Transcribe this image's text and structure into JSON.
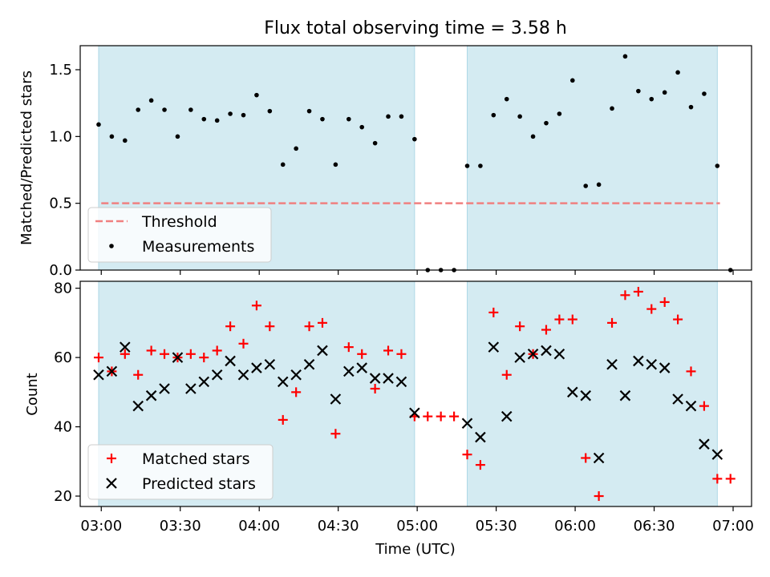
{
  "chart_data": [
    {
      "type": "scatter",
      "title": "Flux total observing time = 3.58 h",
      "xlabel": "",
      "ylabel": "Matched/Predicted stars",
      "ylim": [
        0,
        1.68
      ],
      "yticks": [
        0.0,
        0.5,
        1.0,
        1.5
      ],
      "ytick_labels": [
        "0.0",
        "0.5",
        "1.0",
        "1.5"
      ],
      "threshold": {
        "name": "Threshold",
        "value": 0.5,
        "color": "#f08080",
        "x_start": "03:00",
        "x_end": "06:55"
      },
      "shaded_intervals": [
        [
          "02:59",
          "04:59"
        ],
        [
          "05:19",
          "06:54"
        ]
      ],
      "shade_color": "#add8e6",
      "legend": {
        "location": "lower-left",
        "entries": [
          "Threshold",
          "Measurements"
        ]
      },
      "series": [
        {
          "name": "Measurements",
          "marker": "dot",
          "color": "#000000",
          "x": [
            "02:59",
            "03:04",
            "03:09",
            "03:14",
            "03:19",
            "03:24",
            "03:29",
            "03:34",
            "03:39",
            "03:44",
            "03:49",
            "03:54",
            "03:59",
            "04:04",
            "04:09",
            "04:14",
            "04:19",
            "04:24",
            "04:29",
            "04:34",
            "04:39",
            "04:44",
            "04:49",
            "04:54",
            "04:59",
            "05:04",
            "05:09",
            "05:14",
            "05:19",
            "05:24",
            "05:29",
            "05:34",
            "05:39",
            "05:44",
            "05:49",
            "05:54",
            "05:59",
            "06:04",
            "06:09",
            "06:14",
            "06:19",
            "06:24",
            "06:29",
            "06:34",
            "06:39",
            "06:44",
            "06:49",
            "06:54",
            "06:59"
          ],
          "y": [
            1.09,
            1.0,
            0.97,
            1.2,
            1.27,
            1.2,
            1.0,
            1.2,
            1.13,
            1.12,
            1.17,
            1.16,
            1.31,
            1.19,
            0.79,
            0.91,
            1.19,
            1.13,
            0.79,
            1.13,
            1.07,
            0.95,
            1.15,
            1.15,
            0.98,
            0.0,
            0.0,
            0.0,
            0.78,
            0.78,
            1.16,
            1.28,
            1.15,
            1.0,
            1.1,
            1.17,
            1.42,
            0.63,
            0.64,
            1.21,
            1.6,
            1.34,
            1.28,
            1.33,
            1.48,
            1.22,
            1.32,
            0.78,
            0.0
          ]
        }
      ]
    },
    {
      "type": "scatter",
      "title": "",
      "xlabel": "Time (UTC)",
      "ylabel": "Count",
      "ylim": [
        17,
        82
      ],
      "yticks": [
        20,
        40,
        60,
        80
      ],
      "ytick_labels": [
        "20",
        "40",
        "60",
        "80"
      ],
      "xlim": [
        "02:52",
        "07:07"
      ],
      "xticks": [
        "03:00",
        "03:30",
        "04:00",
        "04:30",
        "05:00",
        "05:30",
        "06:00",
        "06:30",
        "07:00"
      ],
      "shaded_intervals": [
        [
          "02:59",
          "04:59"
        ],
        [
          "05:19",
          "06:54"
        ]
      ],
      "shade_color": "#add8e6",
      "legend": {
        "location": "lower-left",
        "entries": [
          "Matched stars",
          "Predicted stars"
        ]
      },
      "series": [
        {
          "name": "Matched stars",
          "marker": "plus",
          "color": "#ff0000",
          "x": [
            "02:59",
            "03:04",
            "03:09",
            "03:14",
            "03:19",
            "03:24",
            "03:29",
            "03:34",
            "03:39",
            "03:44",
            "03:49",
            "03:54",
            "03:59",
            "04:04",
            "04:09",
            "04:14",
            "04:19",
            "04:24",
            "04:29",
            "04:34",
            "04:39",
            "04:44",
            "04:49",
            "04:54",
            "04:59",
            "05:04",
            "05:09",
            "05:14",
            "05:19",
            "05:24",
            "05:29",
            "05:34",
            "05:39",
            "05:44",
            "05:49",
            "05:54",
            "05:59",
            "06:04",
            "06:09",
            "06:14",
            "06:19",
            "06:24",
            "06:29",
            "06:34",
            "06:39",
            "06:44",
            "06:49",
            "06:54",
            "06:59"
          ],
          "y": [
            60,
            56,
            61,
            55,
            62,
            61,
            60,
            61,
            60,
            62,
            69,
            64,
            75,
            69,
            42,
            50,
            69,
            70,
            38,
            63,
            61,
            51,
            62,
            61,
            43,
            43,
            43,
            43,
            32,
            29,
            73,
            55,
            69,
            61,
            68,
            71,
            71,
            31,
            20,
            70,
            78,
            79,
            74,
            76,
            71,
            56,
            46,
            25,
            25
          ]
        },
        {
          "name": "Predicted stars",
          "marker": "x",
          "color": "#000000",
          "x": [
            "02:59",
            "03:04",
            "03:09",
            "03:14",
            "03:19",
            "03:24",
            "03:29",
            "03:34",
            "03:39",
            "03:44",
            "03:49",
            "03:54",
            "03:59",
            "04:04",
            "04:09",
            "04:14",
            "04:19",
            "04:24",
            "04:29",
            "04:34",
            "04:39",
            "04:44",
            "04:49",
            "04:54",
            "04:59",
            "05:19",
            "05:24",
            "05:29",
            "05:34",
            "05:39",
            "05:44",
            "05:49",
            "05:54",
            "05:59",
            "06:04",
            "06:09",
            "06:14",
            "06:19",
            "06:24",
            "06:29",
            "06:34",
            "06:39",
            "06:44",
            "06:49",
            "06:54"
          ],
          "y": [
            55,
            56,
            63,
            46,
            49,
            51,
            60,
            51,
            53,
            55,
            59,
            55,
            57,
            58,
            53,
            55,
            58,
            62,
            48,
            56,
            57,
            54,
            54,
            53,
            44,
            41,
            37,
            63,
            43,
            60,
            61,
            62,
            61,
            50,
            49,
            31,
            58,
            49,
            59,
            58,
            57,
            48,
            46,
            35,
            32
          ]
        }
      ]
    }
  ]
}
